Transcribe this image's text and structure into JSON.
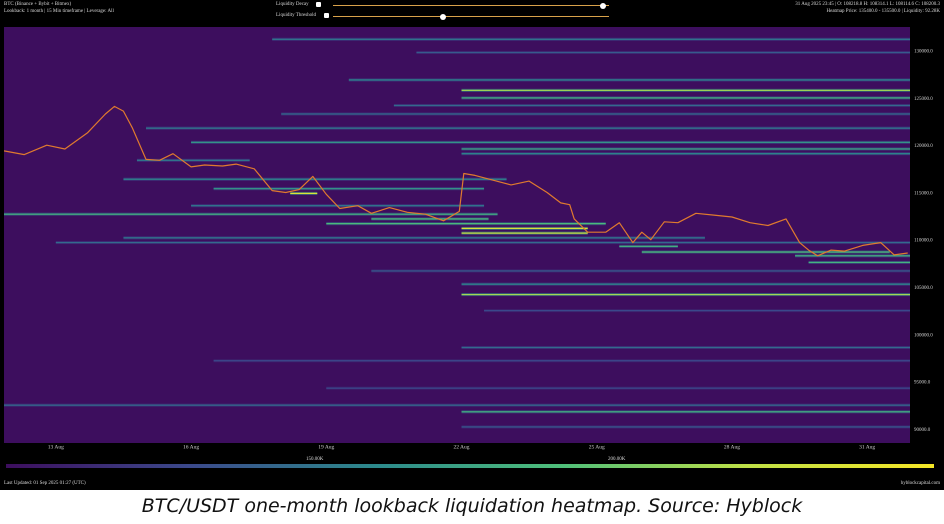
{
  "header": {
    "title": "BTC (Binance + Bybit + Bitmex)",
    "subtitle": "Lookback: 1 month | 15 Min timeframe | Leverage: All",
    "decay_label": "Liquidity Decay",
    "decay_value": 0.98,
    "threshold_label": "Liquidity Threshold",
    "threshold_value": 0.4,
    "ohlc": "31 Aug 2025 23:45 | O: 108218.8 H: 108314.1 L: 108114.6 C: 108200.3",
    "heatmap_stats": "Heatmap Price: 135400.0 - 135500.0 | Liquidity: 92.28K"
  },
  "footer": {
    "last_updated": "Last Updated: 01 Sep 2025 01:27 (UTC)",
    "brand": "hyblockcapital.com"
  },
  "colorbar": {
    "labels": [
      "150.00K",
      "200.00K"
    ],
    "stops": [
      "#3d0e5e",
      "#3b4a8c",
      "#2c8a8c",
      "#4fbf7a",
      "#bfe046",
      "#f5e626"
    ]
  },
  "caption": "BTC/USDT one-month lookback liquidation heatmap. Source: Hyblock",
  "colors": {
    "background": "#3d0e5e",
    "price_line": "#e07a2e",
    "band_low": "#4a3f8f",
    "band_mid": "#2fa3a0",
    "band_high": "#c8e34a"
  },
  "chart_data": {
    "type": "heatmap",
    "x_ticks": [
      "13 Aug",
      "16 Aug",
      "19 Aug",
      "22 Aug",
      "25 Aug",
      "28 Aug",
      "31 Aug"
    ],
    "x_range_days": [
      11.85,
      31.95
    ],
    "y_ticks": [
      "130000.0",
      "125000.0",
      "120000.0",
      "115000.0",
      "110000.0",
      "105000.0",
      "100000.0",
      "95000.0",
      "90000.0"
    ],
    "ylim": [
      88500,
      132500
    ],
    "price_series": {
      "x_days": [
        11.85,
        12.3,
        12.8,
        13.2,
        13.7,
        14.1,
        14.3,
        14.5,
        14.7,
        15.0,
        15.3,
        15.6,
        16.0,
        16.3,
        16.7,
        17.0,
        17.4,
        17.8,
        18.1,
        18.4,
        18.7,
        19.0,
        19.3,
        19.7,
        20.0,
        20.4,
        20.8,
        21.2,
        21.6,
        21.95,
        22.05,
        22.3,
        22.7,
        23.1,
        23.5,
        23.9,
        24.2,
        24.4,
        24.5,
        24.8,
        25.2,
        25.5,
        25.8,
        26.0,
        26.2,
        26.5,
        26.8,
        27.2,
        27.6,
        28.0,
        28.4,
        28.8,
        29.2,
        29.5,
        29.7,
        29.9,
        30.2,
        30.5,
        30.9,
        31.3,
        31.6,
        31.9
      ],
      "y": [
        119400,
        119000,
        120000,
        119600,
        121300,
        123300,
        124100,
        123600,
        121800,
        118500,
        118400,
        119100,
        117700,
        117900,
        117800,
        118000,
        117500,
        115200,
        115000,
        115300,
        116700,
        114800,
        113300,
        113600,
        112800,
        113400,
        112900,
        112700,
        112000,
        113000,
        117000,
        116800,
        116300,
        115800,
        116200,
        115000,
        113900,
        113700,
        112200,
        110800,
        110800,
        111800,
        109700,
        110800,
        110000,
        111900,
        111800,
        112800,
        112600,
        112400,
        111800,
        111500,
        112200,
        109700,
        108900,
        108300,
        108900,
        108800,
        109400,
        109700,
        108400,
        108600
      ]
    },
    "liquidity_bands": [
      {
        "price": 131200,
        "from": 17.8,
        "to": 31.95,
        "intensity": 0.35
      },
      {
        "price": 129800,
        "from": 21.0,
        "to": 31.95,
        "intensity": 0.25
      },
      {
        "price": 126900,
        "from": 19.5,
        "to": 31.95,
        "intensity": 0.4
      },
      {
        "price": 125800,
        "from": 22.0,
        "to": 31.95,
        "intensity": 0.75
      },
      {
        "price": 125000,
        "from": 22.0,
        "to": 31.95,
        "intensity": 0.55
      },
      {
        "price": 124200,
        "from": 20.5,
        "to": 31.95,
        "intensity": 0.3
      },
      {
        "price": 123300,
        "from": 18.0,
        "to": 31.95,
        "intensity": 0.3
      },
      {
        "price": 121800,
        "from": 15.0,
        "to": 31.95,
        "intensity": 0.35
      },
      {
        "price": 120300,
        "from": 16.0,
        "to": 31.95,
        "intensity": 0.45
      },
      {
        "price": 119600,
        "from": 22.0,
        "to": 31.95,
        "intensity": 0.5
      },
      {
        "price": 119100,
        "from": 22.0,
        "to": 31.95,
        "intensity": 0.4
      },
      {
        "price": 118400,
        "from": 14.8,
        "to": 17.3,
        "intensity": 0.35
      },
      {
        "price": 116400,
        "from": 14.5,
        "to": 23.0,
        "intensity": 0.4
      },
      {
        "price": 115400,
        "from": 16.5,
        "to": 22.5,
        "intensity": 0.45
      },
      {
        "price": 114900,
        "from": 18.2,
        "to": 18.8,
        "intensity": 0.9
      },
      {
        "price": 113600,
        "from": 16.0,
        "to": 22.5,
        "intensity": 0.35
      },
      {
        "price": 112700,
        "from": 11.85,
        "to": 22.8,
        "intensity": 0.55
      },
      {
        "price": 112200,
        "from": 20.0,
        "to": 22.6,
        "intensity": 0.6
      },
      {
        "price": 111700,
        "from": 19.0,
        "to": 25.2,
        "intensity": 0.6
      },
      {
        "price": 111200,
        "from": 22.0,
        "to": 24.8,
        "intensity": 0.9
      },
      {
        "price": 110700,
        "from": 22.0,
        "to": 24.8,
        "intensity": 0.85
      },
      {
        "price": 110200,
        "from": 14.5,
        "to": 27.4,
        "intensity": 0.35
      },
      {
        "price": 109700,
        "from": 13.0,
        "to": 31.95,
        "intensity": 0.3
      },
      {
        "price": 109300,
        "from": 25.5,
        "to": 26.8,
        "intensity": 0.55
      },
      {
        "price": 108700,
        "from": 26.0,
        "to": 31.5,
        "intensity": 0.6
      },
      {
        "price": 108300,
        "from": 29.4,
        "to": 31.95,
        "intensity": 0.55
      },
      {
        "price": 107600,
        "from": 29.7,
        "to": 31.95,
        "intensity": 0.55
      },
      {
        "price": 106700,
        "from": 20.0,
        "to": 31.95,
        "intensity": 0.25
      },
      {
        "price": 105300,
        "from": 22.0,
        "to": 31.95,
        "intensity": 0.4
      },
      {
        "price": 104200,
        "from": 22.0,
        "to": 31.95,
        "intensity": 0.75
      },
      {
        "price": 102500,
        "from": 22.5,
        "to": 31.95,
        "intensity": 0.2
      },
      {
        "price": 98600,
        "from": 22.0,
        "to": 31.95,
        "intensity": 0.3
      },
      {
        "price": 97200,
        "from": 16.5,
        "to": 31.95,
        "intensity": 0.2
      },
      {
        "price": 94300,
        "from": 19.0,
        "to": 31.95,
        "intensity": 0.2
      },
      {
        "price": 92500,
        "from": 11.85,
        "to": 31.95,
        "intensity": 0.3
      },
      {
        "price": 91800,
        "from": 22.0,
        "to": 31.95,
        "intensity": 0.55
      },
      {
        "price": 90200,
        "from": 22.0,
        "to": 31.95,
        "intensity": 0.25
      }
    ]
  }
}
